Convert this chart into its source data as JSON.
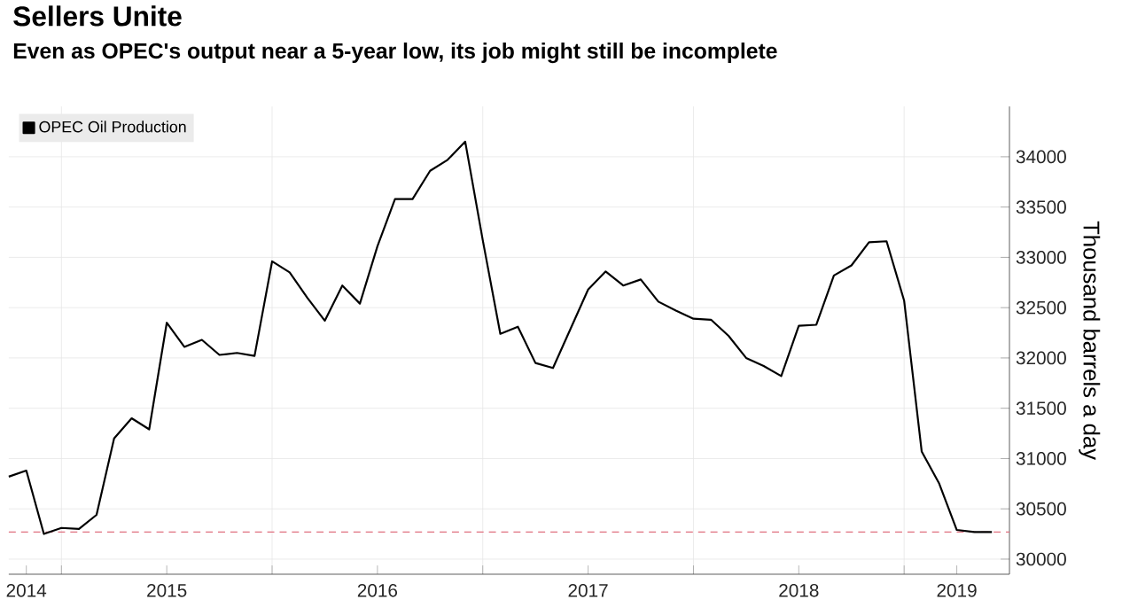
{
  "chart_data": {
    "type": "line",
    "title": "Sellers Unite",
    "subtitle": "Even as OPEC's output near a 5-year low, its job might still be incomplete",
    "ylabel": "Thousand barrels a day",
    "x": [
      "2014-10",
      "2014-11",
      "2014-12",
      "2015-01",
      "2015-02",
      "2015-03",
      "2015-04",
      "2015-05",
      "2015-06",
      "2015-07",
      "2015-08",
      "2015-09",
      "2015-10",
      "2015-11",
      "2015-12",
      "2016-01",
      "2016-02",
      "2016-03",
      "2016-04",
      "2016-05",
      "2016-06",
      "2016-07",
      "2016-08",
      "2016-09",
      "2016-10",
      "2016-11",
      "2016-12",
      "2017-01",
      "2017-02",
      "2017-03",
      "2017-04",
      "2017-05",
      "2017-06",
      "2017-07",
      "2017-08",
      "2017-09",
      "2017-10",
      "2017-11",
      "2017-12",
      "2018-01",
      "2018-02",
      "2018-03",
      "2018-04",
      "2018-05",
      "2018-06",
      "2018-07",
      "2018-08",
      "2018-09",
      "2018-10",
      "2018-11",
      "2018-12",
      "2019-01",
      "2019-02",
      "2019-03",
      "2019-04",
      "2019-05",
      "2019-06"
    ],
    "series": [
      {
        "name": "OPEC Oil Production",
        "color": "#000000",
        "values": [
          30820,
          30880,
          30250,
          30310,
          30300,
          30440,
          31200,
          31400,
          31290,
          32350,
          32110,
          32180,
          32030,
          32050,
          32020,
          32960,
          32850,
          32600,
          32370,
          32720,
          32540,
          33110,
          33580,
          33580,
          33860,
          33970,
          34150,
          33170,
          32240,
          32310,
          31950,
          31900,
          32290,
          32680,
          32860,
          32720,
          32780,
          32560,
          32470,
          32390,
          32380,
          32220,
          32000,
          31920,
          31820,
          32320,
          32330,
          32820,
          32920,
          33150,
          33160,
          32570,
          31070,
          30750,
          30290,
          30270,
          30270
        ]
      }
    ],
    "xlim": [
      "2014-10",
      "2019-07"
    ],
    "xticks": [
      {
        "value": "2015-01",
        "label": null
      },
      {
        "value": "2016-01",
        "label": null
      },
      {
        "value": "2017-01",
        "label": null
      },
      {
        "value": "2018-01",
        "label": null
      },
      {
        "value": "2019-01",
        "label": null
      },
      {
        "value": "2014-11",
        "label": "2014"
      },
      {
        "value": "2015-07",
        "label": "2015"
      },
      {
        "value": "2016-07",
        "label": "2016"
      },
      {
        "value": "2017-07",
        "label": "2017"
      },
      {
        "value": "2018-07",
        "label": "2018"
      },
      {
        "value": "2019-04",
        "label": "2019"
      }
    ],
    "ylim": [
      29850,
      34500
    ],
    "yticks": [
      30000,
      30500,
      31000,
      31500,
      32000,
      32500,
      33000,
      33500,
      34000
    ],
    "ref_lines": [
      {
        "axis": "y",
        "value": 30270,
        "color": "#e07080",
        "line_style": "dashed"
      }
    ],
    "grid": true,
    "legend": "top left",
    "line_style": "solid",
    "marker": "none"
  }
}
